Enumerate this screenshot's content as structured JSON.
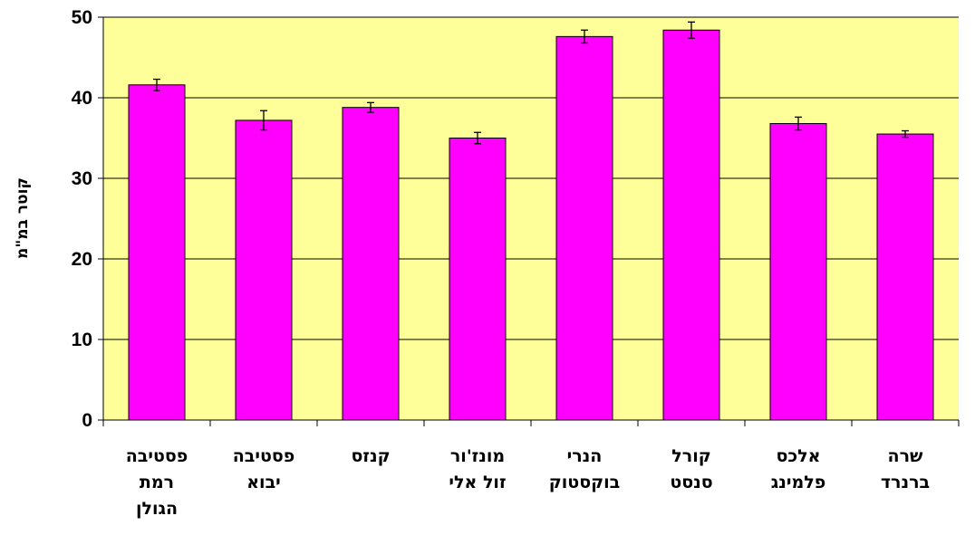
{
  "chart_data": {
    "type": "bar",
    "title": "",
    "xlabel": "",
    "ylabel": "קוטר במ\"מ",
    "ylim": [
      0,
      50
    ],
    "yticks": [
      0,
      10,
      20,
      30,
      40,
      50
    ],
    "grid": true,
    "legend": "none",
    "colors": {
      "bar": "#ff00ff",
      "plot_bg": "#ffff99",
      "grid": "#000000"
    },
    "categories": [
      [
        "פסטיבה",
        "רמת",
        "הגולן"
      ],
      [
        "פסטיבה",
        "יבוא"
      ],
      [
        "קנזס"
      ],
      [
        "מונז'ור",
        "זול אלי"
      ],
      [
        "הנרי",
        "בוקסטוק"
      ],
      [
        "קורל",
        "סנסט"
      ],
      [
        "אלכס",
        "פלמינג"
      ],
      [
        "שרה",
        "ברנרד"
      ]
    ],
    "values": [
      41.6,
      37.2,
      38.8,
      35.0,
      47.6,
      48.4,
      36.8,
      35.5
    ],
    "errors": [
      0.7,
      1.2,
      0.6,
      0.7,
      0.8,
      1.0,
      0.8,
      0.4
    ]
  }
}
